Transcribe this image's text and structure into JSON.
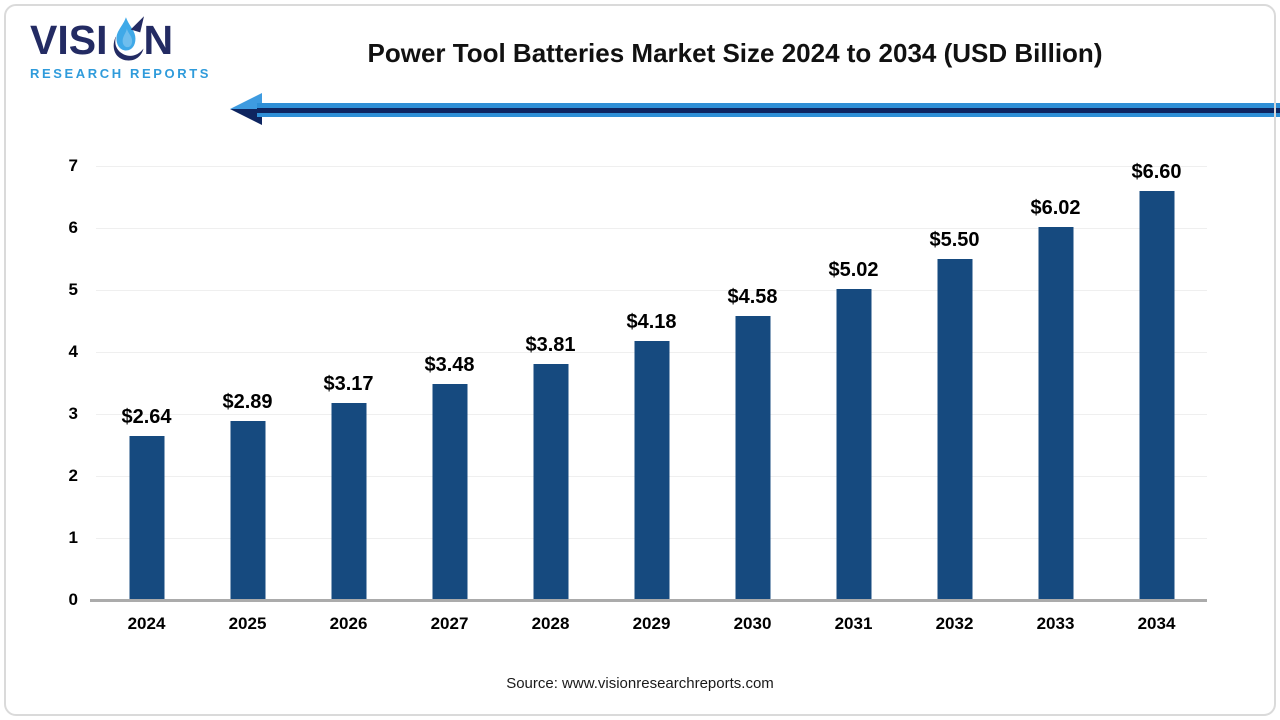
{
  "logo": {
    "text_left": "VISI",
    "text_right": "N",
    "subtext": "RESEARCH REPORTS"
  },
  "header": {
    "title": "Power Tool Batteries Market Size 2024 to 2034 (USD Billion)"
  },
  "footer": {
    "source": "Source: www.visionresearchreports.com"
  },
  "chart_data": {
    "type": "bar",
    "title": "Power Tool Batteries Market Size 2024 to 2034 (USD Billion)",
    "categories": [
      "2024",
      "2025",
      "2026",
      "2027",
      "2028",
      "2029",
      "2030",
      "2031",
      "2032",
      "2033",
      "2034"
    ],
    "values": [
      2.64,
      2.89,
      3.17,
      3.48,
      3.81,
      4.18,
      4.58,
      5.02,
      5.5,
      6.02,
      6.6
    ],
    "value_labels": [
      "$2.64",
      "$2.89",
      "$3.17",
      "$3.48",
      "$3.81",
      "$4.18",
      "$4.58",
      "$5.02",
      "$5.50",
      "$6.02",
      "$6.60"
    ],
    "xlabel": "",
    "ylabel": "",
    "ylim": [
      0,
      7
    ],
    "yticks": [
      0,
      1,
      2,
      3,
      4,
      5,
      6,
      7
    ],
    "grid": true,
    "legend": "none",
    "bar_color": "#164a7f",
    "gridline_color": "#efefef",
    "axis_line_color": "#ababab"
  },
  "colors": {
    "logo_navy": "#232b63",
    "logo_light_blue": "#2f9bdb",
    "arrow_light_blue": "#2e8fd6",
    "arrow_navy": "#0e2560"
  }
}
